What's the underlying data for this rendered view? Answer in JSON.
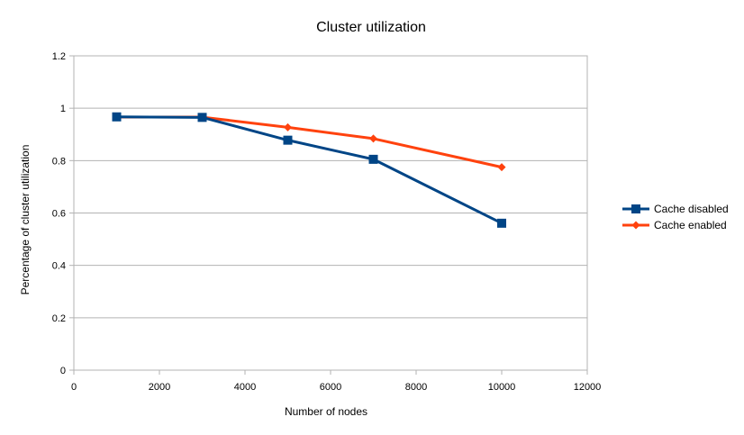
{
  "chart_data": {
    "type": "line",
    "title": "Cluster utilization",
    "xlabel": "Number of nodes",
    "ylabel": "Percentage of cluster utilization",
    "xlim": [
      0,
      12000
    ],
    "ylim": [
      0,
      1.2
    ],
    "x_ticks": [
      0,
      2000,
      4000,
      6000,
      8000,
      10000,
      12000
    ],
    "y_ticks": [
      0,
      0.2,
      0.4,
      0.6,
      0.8,
      1,
      1.2
    ],
    "x_tick_labels": [
      "0",
      "2000",
      "4000",
      "6000",
      "8000",
      "10000",
      "12000"
    ],
    "y_tick_labels": [
      "0",
      "0.2",
      "0.4",
      "0.6",
      "0.8",
      "1",
      "1.2"
    ],
    "grid": "horizontal",
    "legend_position": "right",
    "series": [
      {
        "name": "Cache disabled",
        "color": "#004586",
        "marker": "square",
        "x": [
          1000,
          3000,
          5000,
          7000,
          10000
        ],
        "y": [
          0.967,
          0.965,
          0.878,
          0.805,
          0.561
        ]
      },
      {
        "name": "Cache enabled",
        "color": "#ff420e",
        "marker": "diamond",
        "x": [
          1000,
          3000,
          5000,
          7000,
          10000
        ],
        "y": [
          0.966,
          0.966,
          0.927,
          0.884,
          0.775
        ]
      }
    ]
  }
}
